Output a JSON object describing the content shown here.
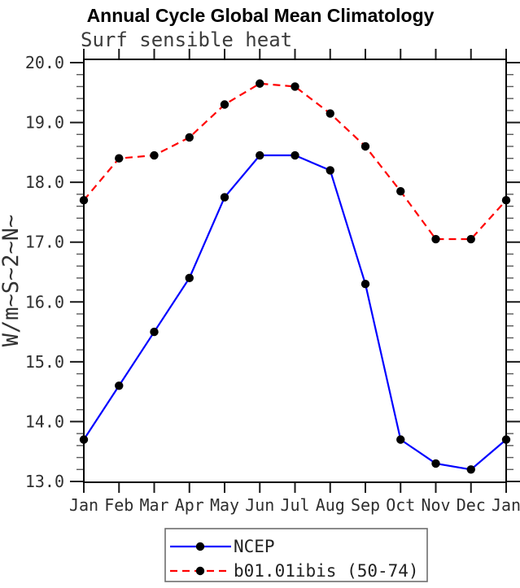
{
  "title": "Annual Cycle Global Mean Climatology",
  "subtitle": "Surf sensible heat",
  "chart_data": {
    "type": "line",
    "title": "Annual Cycle Global Mean Climatology",
    "subtitle": "Surf sensible heat",
    "xlabel": "",
    "ylabel": "W/m~S~2~N~",
    "x_tick_labels": [
      "Jan",
      "Feb",
      "Mar",
      "Apr",
      "May",
      "Jun",
      "Jul",
      "Aug",
      "Sep",
      "Oct",
      "Nov",
      "Dec",
      "Jan"
    ],
    "ylim": [
      13.0,
      20.05
    ],
    "ytick_labels": [
      "13.0",
      "14.0",
      "15.0",
      "16.0",
      "17.0",
      "18.0",
      "19.0",
      "20.0"
    ],
    "yticks_major": [
      13.0,
      14.0,
      15.0,
      16.0,
      17.0,
      18.0,
      19.0,
      20.0
    ],
    "minor_tick_interval": 0.2,
    "grid": false,
    "legend_position": "bottom-center",
    "marker": "filled-circle",
    "marker_color": "#000000",
    "series": [
      {
        "name": "NCEP",
        "color": "#0000ff",
        "style": "solid",
        "values": [
          13.7,
          14.6,
          15.5,
          16.4,
          17.75,
          18.45,
          18.45,
          18.2,
          16.3,
          13.7,
          13.3,
          13.2,
          13.7
        ]
      },
      {
        "name": "b01.01ibis (50-74)",
        "color": "#ff0000",
        "style": "dashed",
        "values": [
          17.7,
          18.4,
          18.45,
          18.75,
          19.3,
          19.65,
          19.6,
          19.15,
          18.6,
          17.85,
          17.05,
          17.05,
          17.7
        ]
      }
    ]
  }
}
